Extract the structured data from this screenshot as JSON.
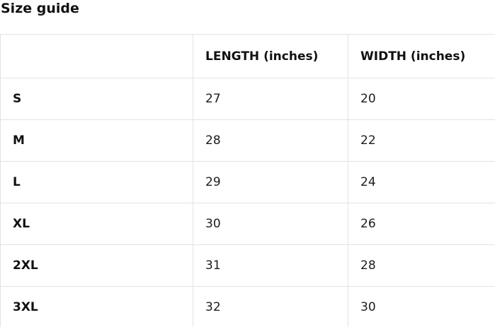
{
  "page": {
    "title": "Size guide"
  },
  "table": {
    "headers": [
      "",
      "LENGTH (inches)",
      "WIDTH (inches)"
    ],
    "rows": [
      {
        "size": "S",
        "length": "27",
        "width": "20"
      },
      {
        "size": "M",
        "length": "28",
        "width": "22"
      },
      {
        "size": "L",
        "length": "29",
        "width": "24"
      },
      {
        "size": "XL",
        "length": "30",
        "width": "26"
      },
      {
        "size": "2XL",
        "length": "31",
        "width": "28"
      },
      {
        "size": "3XL",
        "length": "32",
        "width": "30"
      }
    ]
  },
  "colors": {
    "border": "#e3e3e3",
    "text": "#1c1c1c",
    "heading": "#111111",
    "background": "#ffffff"
  }
}
